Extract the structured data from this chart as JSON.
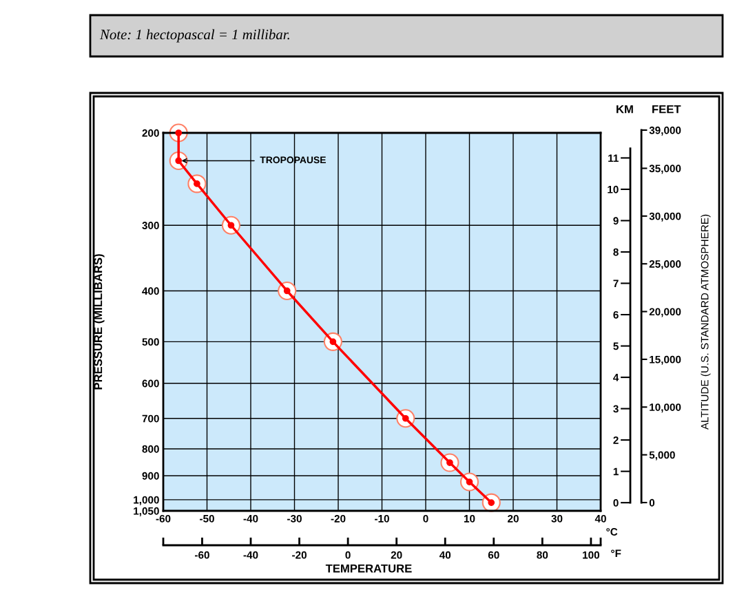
{
  "chart_data": {
    "type": "line",
    "xlabel": "TEMPERATURE",
    "ylabel": "PRESSURE (MILLIBARS)",
    "y2label": "KM",
    "y3label": "FEET",
    "x2label": "°F",
    "annotations": [
      "Note: 1 hectopascal = 1 millibar.",
      "°C",
      "ALTITUDE (U.S. STANDARD ATMOSPHERE)",
      {
        "text": "TROPOPAUSE",
        "x": -56.5,
        "y": 226
      }
    ],
    "series": [
      {
        "color": "#ff0000",
        "x": [
          -56.5,
          -56.5,
          -52.3,
          -44.5,
          -31.7,
          -21.2,
          -4.6,
          5.5,
          10.0,
          15.0
        ],
        "values": [
          200,
          226,
          250,
          300,
          400,
          500,
          700,
          850,
          925,
          1013
        ]
      }
    ],
    "marker": "circle",
    "line_style": "solid",
    "grid": true,
    "log": true,
    "xlim": [
      -60,
      40
    ],
    "xticks": [
      -60,
      -50,
      -40,
      -30,
      -20,
      -10,
      0,
      10,
      20,
      30,
      40
    ],
    "x2lim": [
      -76,
      104
    ],
    "x2ticks": [
      {
        "value": -76,
        "label": null
      },
      -60,
      -40,
      -20,
      0,
      20,
      40,
      60,
      80,
      100,
      {
        "value": 104,
        "label": null
      }
    ],
    "ylim": [
      1050,
      200
    ],
    "yticks": [
      200,
      300,
      400,
      500,
      600,
      700,
      800,
      900,
      {
        "value": 1000,
        "label": "1,000"
      },
      {
        "value": 1050,
        "label": "1,050"
      }
    ],
    "y2lim": [
      -0.26,
      11.8
    ],
    "y2ticks": [
      0,
      1,
      2,
      3,
      4,
      5,
      6,
      7,
      8,
      9,
      10,
      11
    ],
    "y3lim": [
      0,
      39000
    ],
    "y3ticks": [
      0,
      {
        "value": 5000,
        "label": "5,000"
      },
      {
        "value": 10000,
        "label": "10,000"
      },
      {
        "value": 15000,
        "label": "15,000"
      },
      {
        "value": 20000,
        "label": "20,000"
      },
      {
        "value": 25000,
        "label": "25,000"
      },
      {
        "value": 30000,
        "label": "30,000"
      },
      {
        "value": 35000,
        "label": "35,000"
      },
      {
        "value": 39000,
        "label": "39,000"
      }
    ]
  }
}
